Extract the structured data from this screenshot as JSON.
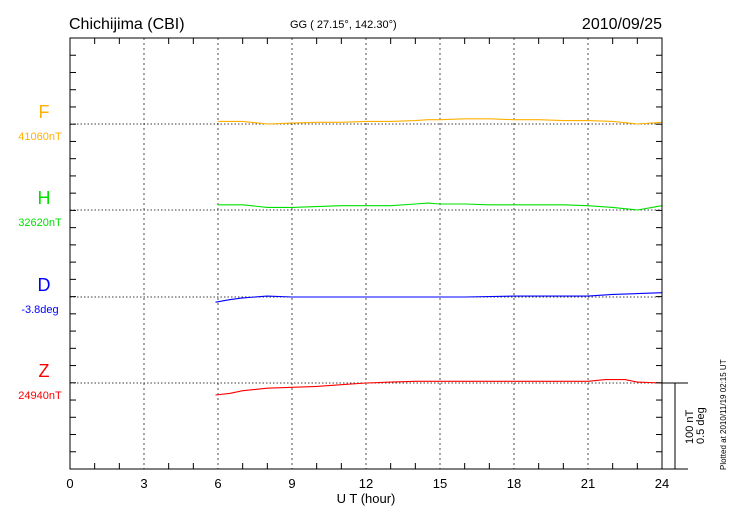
{
  "chart_data": {
    "type": "line",
    "title": "Chichijima (CBI)",
    "subtitle": "GG ( 27.15°, 142.30°)",
    "date": "2010/09/25",
    "xlabel": "U T (hour)",
    "xlim": [
      0,
      24
    ],
    "xticks": [
      "0",
      "3",
      "6",
      "9",
      "12",
      "15",
      "18",
      "21",
      "24"
    ],
    "scale_label_1": "100 nT",
    "scale_label_2": "0.5 deg",
    "footer": "Plotted at 2010/11/19 02:15 UT",
    "grid": true,
    "series": [
      {
        "name": "F",
        "baseline": "41060nT",
        "color": "#ffb000",
        "x": [
          6,
          7,
          8,
          9,
          10,
          11,
          12,
          13,
          14,
          14.5,
          15,
          16,
          17,
          18,
          19,
          20,
          21,
          22,
          23,
          24
        ],
        "values": [
          3,
          3,
          0,
          1,
          2,
          2,
          3,
          3,
          4,
          5,
          5,
          6,
          6,
          5,
          5,
          4,
          4,
          3,
          0,
          2
        ]
      },
      {
        "name": "H",
        "baseline": "32620nT",
        "color": "#00e000",
        "x": [
          6,
          7,
          8,
          9,
          10,
          11,
          12,
          13,
          14,
          14.5,
          15,
          16,
          17,
          18,
          19,
          20,
          21,
          22,
          23,
          24
        ],
        "values": [
          6,
          6,
          3,
          3,
          4,
          5,
          5,
          5,
          7,
          8,
          7,
          7,
          6,
          6,
          6,
          6,
          5,
          3,
          0,
          5
        ]
      },
      {
        "name": "D",
        "baseline": "-3.8deg",
        "color": "#0000ff",
        "x": [
          5.9,
          6.5,
          7,
          8,
          9,
          10,
          12,
          14,
          16,
          18,
          20,
          21,
          22,
          23,
          24
        ],
        "values": [
          -6,
          -3,
          -1,
          1,
          0,
          0,
          0,
          0,
          0,
          1,
          1,
          1,
          3,
          4,
          5
        ]
      },
      {
        "name": "Z",
        "baseline": "24940nT",
        "color": "#ff0000",
        "x": [
          5.9,
          6.5,
          7,
          8,
          9,
          10,
          11,
          12,
          13,
          14,
          16,
          18,
          20,
          21,
          21.7,
          22.5,
          23,
          24
        ],
        "values": [
          -14,
          -12,
          -9,
          -6,
          -5,
          -4,
          -2,
          0,
          1,
          2,
          2,
          2,
          2,
          2,
          4,
          4,
          1,
          0
        ]
      }
    ]
  }
}
